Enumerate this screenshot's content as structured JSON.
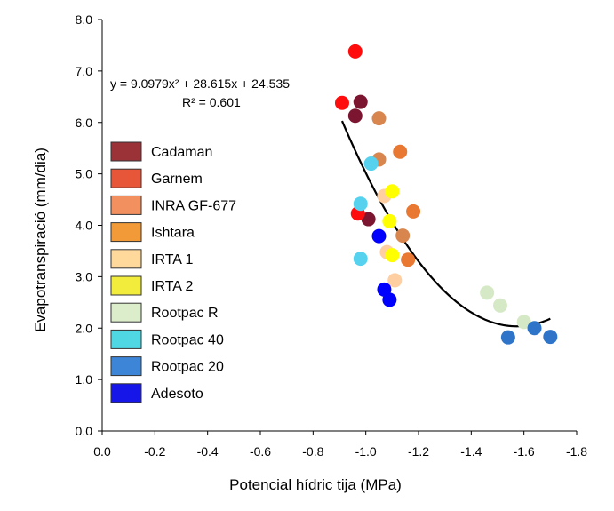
{
  "chart_data": {
    "type": "scatter",
    "xlabel": "Potencial hídric tija (MPa)",
    "ylabel": "Evapotranspiració (mm/dia)",
    "xlim": [
      0.0,
      -1.8
    ],
    "ylim": [
      0.0,
      8.0
    ],
    "x_ticks": [
      "0.0",
      "-0.2",
      "-0.4",
      "-0.6",
      "-0.8",
      "-1.0",
      "-1.2",
      "-1.4",
      "-1.6",
      "-1.8"
    ],
    "y_ticks": [
      "0.0",
      "1.0",
      "2.0",
      "3.0",
      "4.0",
      "5.0",
      "6.0",
      "7.0",
      "8.0"
    ],
    "grid": false,
    "legend_position": "left",
    "series": [
      {
        "name": "Cadaman",
        "legend_color": "#9b3237",
        "point_color": "#7b1530",
        "points": [
          [
            -0.98,
            6.4
          ],
          [
            -0.96,
            6.13
          ],
          [
            -1.01,
            4.12
          ]
        ]
      },
      {
        "name": "Garnem",
        "legend_color": "#e8563a",
        "point_color": "#ff0c0c",
        "points": [
          [
            -0.96,
            7.38
          ],
          [
            -0.91,
            6.38
          ],
          [
            -0.97,
            4.23
          ]
        ]
      },
      {
        "name": "INRA GF-677",
        "legend_color": "#f39060",
        "point_color": "#d9864e",
        "points": [
          [
            -1.05,
            6.08
          ],
          [
            -1.05,
            5.28
          ],
          [
            -1.14,
            3.8
          ]
        ]
      },
      {
        "name": "Ishtara",
        "legend_color": "#f29a38",
        "point_color": "#e87832",
        "points": [
          [
            -1.13,
            5.43
          ],
          [
            -1.18,
            4.27
          ],
          [
            -1.16,
            3.33
          ]
        ]
      },
      {
        "name": "IRTA 1",
        "legend_color": "#ffd89b",
        "point_color": "#ffcfa1",
        "points": [
          [
            -1.07,
            4.57
          ],
          [
            -1.08,
            3.48
          ],
          [
            -1.11,
            2.93
          ]
        ]
      },
      {
        "name": "IRTA 2",
        "legend_color": "#f2ed3d",
        "point_color": "#ffff00",
        "points": [
          [
            -1.1,
            4.66
          ],
          [
            -1.09,
            4.08
          ],
          [
            -1.1,
            3.42
          ]
        ]
      },
      {
        "name": "Rootpac R",
        "legend_color": "#dcedcb",
        "point_color": "#d6e9c6",
        "points": [
          [
            -1.46,
            2.69
          ],
          [
            -1.51,
            2.44
          ],
          [
            -1.6,
            2.12
          ]
        ]
      },
      {
        "name": "Rootpac 40",
        "legend_color": "#4fd8e3",
        "point_color": "#56d2ef",
        "points": [
          [
            -1.02,
            5.2
          ],
          [
            -0.98,
            4.42
          ],
          [
            -0.98,
            3.35
          ]
        ]
      },
      {
        "name": "Rootpac 20",
        "legend_color": "#3d85d6",
        "point_color": "#2e75c9",
        "points": [
          [
            -1.54,
            1.82
          ],
          [
            -1.64,
            2.0
          ],
          [
            -1.7,
            1.83
          ]
        ]
      },
      {
        "name": "Adesoto",
        "legend_color": "#1616e8",
        "point_color": "#0000ff",
        "points": [
          [
            -1.05,
            3.79
          ],
          [
            -1.07,
            2.75
          ],
          [
            -1.09,
            2.55
          ]
        ]
      }
    ],
    "trendline": {
      "equation_line1": "y = 9.0979x² + 28.615x + 24.535",
      "equation_line2": "R² = 0.601",
      "a": 9.0979,
      "b": 28.615,
      "c": 24.535,
      "x_range": [
        -0.91,
        -1.7
      ],
      "color": "#000000"
    }
  }
}
